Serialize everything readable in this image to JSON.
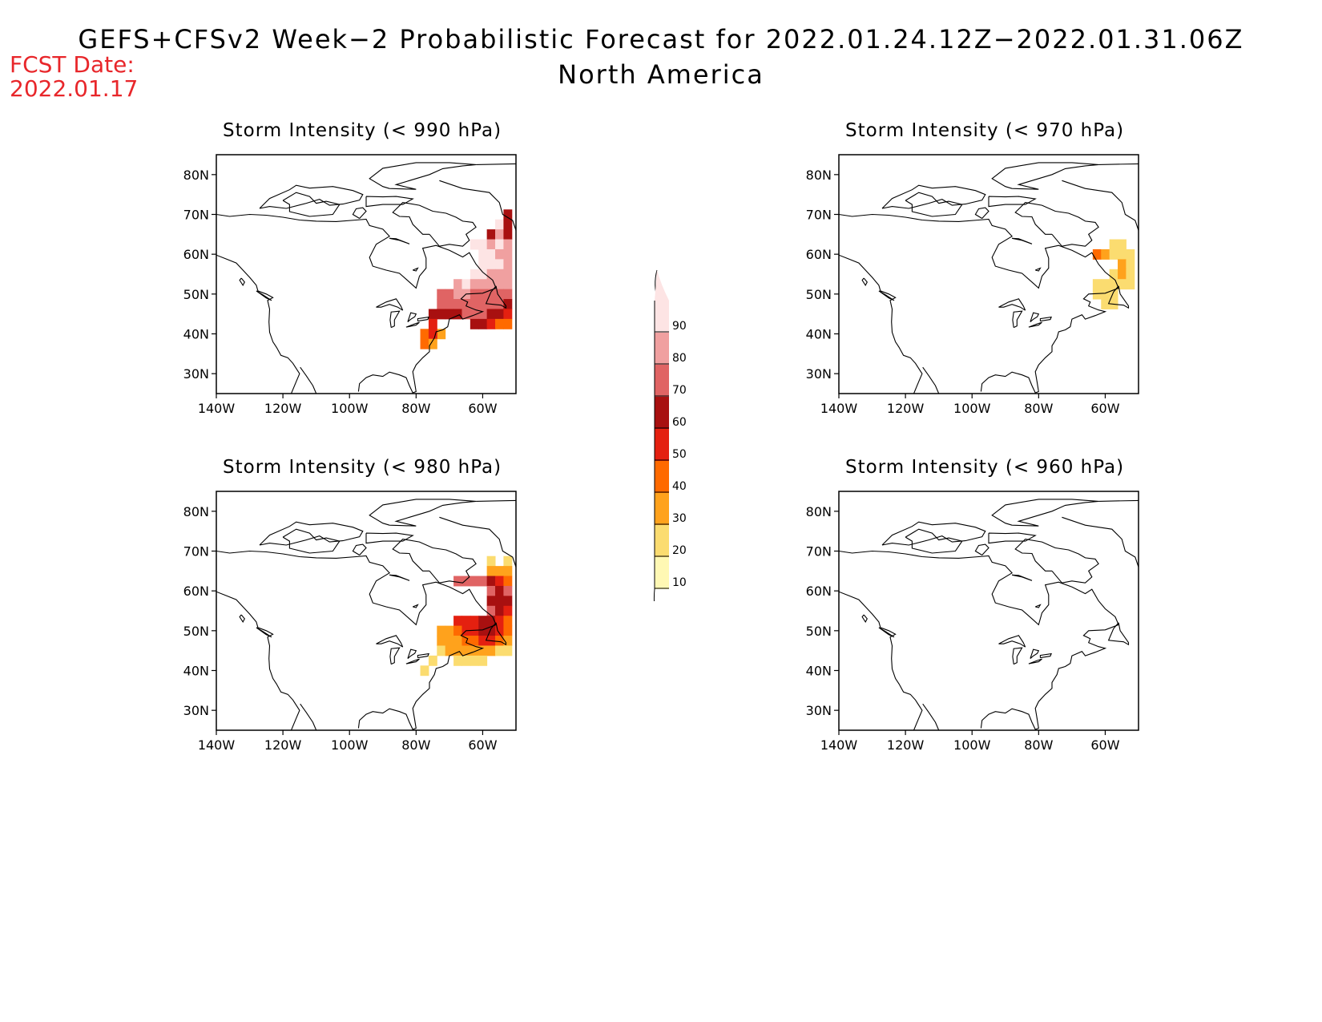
{
  "header": {
    "title": "GEFS+CFSv2 Week−2 Probabilistic Forecast for 2022.01.24.12Z−2022.01.31.06Z",
    "subtitle": "North America",
    "fcst_label": "FCST Date:",
    "fcst_date": "2022.01.17"
  },
  "axes": {
    "lat_labels": [
      "80N",
      "70N",
      "60N",
      "50N",
      "40N",
      "30N"
    ],
    "lon_labels": [
      "140W",
      "120W",
      "100W",
      "80W",
      "60W"
    ]
  },
  "panels": [
    {
      "id": "p990",
      "title": "Storm Intensity (< 990 hPa)"
    },
    {
      "id": "p970",
      "title": "Storm Intensity (< 970 hPa)"
    },
    {
      "id": "p980",
      "title": "Storm Intensity (< 980 hPa)"
    },
    {
      "id": "p960",
      "title": "Storm Intensity (< 960 hPa)"
    }
  ],
  "colorbar": {
    "labels": [
      "90",
      "80",
      "70",
      "60",
      "50",
      "40",
      "30",
      "20",
      "10"
    ],
    "colors": [
      "#fde4e4",
      "#f0a0a0",
      "#e06464",
      "#a81010",
      "#e42010",
      "#ff6a00",
      "#ffa21c",
      "#fbdc70",
      "#fff8b4"
    ]
  },
  "chart_data": {
    "type": "heatmap",
    "description_units": "probability percent",
    "lon_range": [
      -140,
      -50
    ],
    "lat_range": [
      25,
      85
    ],
    "maps": [
      {
        "title": "Storm Intensity (< 990 hPa)",
        "cells": [
          {
            "lon": -55,
            "lat": 67.5,
            "p": 90
          },
          {
            "lon": -52.5,
            "lat": 67.5,
            "p": 55
          },
          {
            "lon": -57.5,
            "lat": 65,
            "p": 55
          },
          {
            "lon": -55,
            "lat": 65,
            "p": 75
          },
          {
            "lon": -52.5,
            "lat": 65,
            "p": 60
          },
          {
            "lon": -52.5,
            "lat": 70,
            "p": 55
          },
          {
            "lon": -62.5,
            "lat": 62.5,
            "p": 92
          },
          {
            "lon": -60,
            "lat": 62.5,
            "p": 85
          },
          {
            "lon": -57.5,
            "lat": 62.5,
            "p": 80
          },
          {
            "lon": -55,
            "lat": 62.5,
            "p": 85
          },
          {
            "lon": -52.5,
            "lat": 62.5,
            "p": 80
          },
          {
            "lon": -60,
            "lat": 60,
            "p": 92
          },
          {
            "lon": -57.5,
            "lat": 60,
            "p": 85
          },
          {
            "lon": -55,
            "lat": 60,
            "p": 80
          },
          {
            "lon": -52.5,
            "lat": 60,
            "p": 80
          },
          {
            "lon": -60,
            "lat": 57.5,
            "p": 95
          },
          {
            "lon": -57.5,
            "lat": 57.5,
            "p": 95
          },
          {
            "lon": -55,
            "lat": 57.5,
            "p": 85
          },
          {
            "lon": -52.5,
            "lat": 57.5,
            "p": 80
          },
          {
            "lon": -62.5,
            "lat": 55,
            "p": 90
          },
          {
            "lon": -60,
            "lat": 55,
            "p": 85
          },
          {
            "lon": -57.5,
            "lat": 55,
            "p": 80
          },
          {
            "lon": -55,
            "lat": 55,
            "p": 75
          },
          {
            "lon": -52.5,
            "lat": 55,
            "p": 75
          },
          {
            "lon": -67.5,
            "lat": 52.5,
            "p": 75
          },
          {
            "lon": -65,
            "lat": 52.5,
            "p": 85
          },
          {
            "lon": -62.5,
            "lat": 52.5,
            "p": 75
          },
          {
            "lon": -60,
            "lat": 52.5,
            "p": 75
          },
          {
            "lon": -57.5,
            "lat": 52.5,
            "p": 75
          },
          {
            "lon": -55,
            "lat": 52.5,
            "p": 75
          },
          {
            "lon": -52.5,
            "lat": 52.5,
            "p": 75
          },
          {
            "lon": -72.5,
            "lat": 50,
            "p": 65
          },
          {
            "lon": -70,
            "lat": 50,
            "p": 65
          },
          {
            "lon": -67.5,
            "lat": 50,
            "p": 75
          },
          {
            "lon": -65,
            "lat": 50,
            "p": 75
          },
          {
            "lon": -62.5,
            "lat": 50,
            "p": 65
          },
          {
            "lon": -60,
            "lat": 50,
            "p": 65
          },
          {
            "lon": -57.5,
            "lat": 50,
            "p": 65
          },
          {
            "lon": -55,
            "lat": 50,
            "p": 65
          },
          {
            "lon": -52.5,
            "lat": 50,
            "p": 65
          },
          {
            "lon": -72.5,
            "lat": 47.5,
            "p": 65
          },
          {
            "lon": -70,
            "lat": 47.5,
            "p": 65
          },
          {
            "lon": -67.5,
            "lat": 47.5,
            "p": 65
          },
          {
            "lon": -65,
            "lat": 47.5,
            "p": 65
          },
          {
            "lon": -62.5,
            "lat": 47.5,
            "p": 65
          },
          {
            "lon": -60,
            "lat": 47.5,
            "p": 65
          },
          {
            "lon": -57.5,
            "lat": 47.5,
            "p": 65
          },
          {
            "lon": -55,
            "lat": 47.5,
            "p": 65
          },
          {
            "lon": -52.5,
            "lat": 47.5,
            "p": 55
          },
          {
            "lon": -75,
            "lat": 45,
            "p": 55
          },
          {
            "lon": -72.5,
            "lat": 45,
            "p": 55
          },
          {
            "lon": -70,
            "lat": 45,
            "p": 55
          },
          {
            "lon": -67.5,
            "lat": 45,
            "p": 55
          },
          {
            "lon": -65,
            "lat": 45,
            "p": 65
          },
          {
            "lon": -62.5,
            "lat": 45,
            "p": 65
          },
          {
            "lon": -60,
            "lat": 45,
            "p": 65
          },
          {
            "lon": -57.5,
            "lat": 45,
            "p": 55
          },
          {
            "lon": -55,
            "lat": 45,
            "p": 55
          },
          {
            "lon": -52.5,
            "lat": 45,
            "p": 45
          },
          {
            "lon": -75,
            "lat": 42.5,
            "p": 45
          },
          {
            "lon": -62.5,
            "lat": 42.5,
            "p": 55
          },
          {
            "lon": -60,
            "lat": 42.5,
            "p": 55
          },
          {
            "lon": -57.5,
            "lat": 42.5,
            "p": 45
          },
          {
            "lon": -55,
            "lat": 42.5,
            "p": 35
          },
          {
            "lon": -52.5,
            "lat": 42.5,
            "p": 35
          },
          {
            "lon": -77.5,
            "lat": 40,
            "p": 35
          },
          {
            "lon": -72.5,
            "lat": 40,
            "p": 25
          },
          {
            "lon": -75,
            "lat": 40,
            "p": 45
          },
          {
            "lon": -77.5,
            "lat": 37.5,
            "p": 35
          },
          {
            "lon": -75,
            "lat": 37.5,
            "p": 25
          }
        ]
      },
      {
        "title": "Storm Intensity (< 970 hPa)",
        "cells": [
          {
            "lon": -57.5,
            "lat": 62.5,
            "p": 20
          },
          {
            "lon": -55,
            "lat": 62.5,
            "p": 20
          },
          {
            "lon": -62.5,
            "lat": 60,
            "p": 35
          },
          {
            "lon": -60,
            "lat": 60,
            "p": 25
          },
          {
            "lon": -57.5,
            "lat": 60,
            "p": 15
          },
          {
            "lon": -55,
            "lat": 60,
            "p": 20
          },
          {
            "lon": -52.5,
            "lat": 60,
            "p": 20
          },
          {
            "lon": -55,
            "lat": 57.5,
            "p": 25
          },
          {
            "lon": -52.5,
            "lat": 57.5,
            "p": 20
          },
          {
            "lon": -57.5,
            "lat": 55,
            "p": 15
          },
          {
            "lon": -55,
            "lat": 55,
            "p": 25
          },
          {
            "lon": -52.5,
            "lat": 55,
            "p": 15
          },
          {
            "lon": -62.5,
            "lat": 52.5,
            "p": 15
          },
          {
            "lon": -60,
            "lat": 52.5,
            "p": 20
          },
          {
            "lon": -57.5,
            "lat": 52.5,
            "p": 20
          },
          {
            "lon": -55,
            "lat": 52.5,
            "p": 15
          },
          {
            "lon": -52.5,
            "lat": 52.5,
            "p": 15
          },
          {
            "lon": -62.5,
            "lat": 50,
            "p": 15
          },
          {
            "lon": -60,
            "lat": 50,
            "p": 15
          },
          {
            "lon": -57.5,
            "lat": 50,
            "p": 15
          },
          {
            "lon": -60,
            "lat": 47.5,
            "p": 15
          },
          {
            "lon": -57.5,
            "lat": 47.5,
            "p": 15
          }
        ]
      },
      {
        "title": "Storm Intensity (< 980 hPa)",
        "cells": [
          {
            "lon": -57.5,
            "lat": 67.5,
            "p": 15
          },
          {
            "lon": -52.5,
            "lat": 67.5,
            "p": 15
          },
          {
            "lon": -52.5,
            "lat": 65,
            "p": 25
          },
          {
            "lon": -57.5,
            "lat": 65,
            "p": 25
          },
          {
            "lon": -55,
            "lat": 65,
            "p": 25
          },
          {
            "lon": -67.5,
            "lat": 62.5,
            "p": 65
          },
          {
            "lon": -65,
            "lat": 62.5,
            "p": 65
          },
          {
            "lon": -62.5,
            "lat": 62.5,
            "p": 65
          },
          {
            "lon": -60,
            "lat": 62.5,
            "p": 65
          },
          {
            "lon": -57.5,
            "lat": 62.5,
            "p": 55
          },
          {
            "lon": -55,
            "lat": 62.5,
            "p": 45
          },
          {
            "lon": -52.5,
            "lat": 62.5,
            "p": 35
          },
          {
            "lon": -57.5,
            "lat": 60,
            "p": 65
          },
          {
            "lon": -55,
            "lat": 60,
            "p": 55
          },
          {
            "lon": -52.5,
            "lat": 60,
            "p": 65
          },
          {
            "lon": -57.5,
            "lat": 57.5,
            "p": 55
          },
          {
            "lon": -55,
            "lat": 57.5,
            "p": 55
          },
          {
            "lon": -52.5,
            "lat": 57.5,
            "p": 55
          },
          {
            "lon": -57.5,
            "lat": 55,
            "p": 65
          },
          {
            "lon": -55,
            "lat": 55,
            "p": 55
          },
          {
            "lon": -52.5,
            "lat": 55,
            "p": 45
          },
          {
            "lon": -67.5,
            "lat": 52.5,
            "p": 45
          },
          {
            "lon": -65,
            "lat": 52.5,
            "p": 45
          },
          {
            "lon": -62.5,
            "lat": 52.5,
            "p": 45
          },
          {
            "lon": -60,
            "lat": 52.5,
            "p": 55
          },
          {
            "lon": -57.5,
            "lat": 52.5,
            "p": 55
          },
          {
            "lon": -55,
            "lat": 52.5,
            "p": 45
          },
          {
            "lon": -52.5,
            "lat": 52.5,
            "p": 35
          },
          {
            "lon": -72.5,
            "lat": 50,
            "p": 25
          },
          {
            "lon": -70,
            "lat": 50,
            "p": 25
          },
          {
            "lon": -67.5,
            "lat": 50,
            "p": 35
          },
          {
            "lon": -65,
            "lat": 50,
            "p": 45
          },
          {
            "lon": -62.5,
            "lat": 50,
            "p": 45
          },
          {
            "lon": -60,
            "lat": 50,
            "p": 55
          },
          {
            "lon": -57.5,
            "lat": 50,
            "p": 55
          },
          {
            "lon": -55,
            "lat": 50,
            "p": 45
          },
          {
            "lon": -52.5,
            "lat": 50,
            "p": 35
          },
          {
            "lon": -72.5,
            "lat": 47.5,
            "p": 25
          },
          {
            "lon": -70,
            "lat": 47.5,
            "p": 25
          },
          {
            "lon": -67.5,
            "lat": 47.5,
            "p": 25
          },
          {
            "lon": -65,
            "lat": 47.5,
            "p": 35
          },
          {
            "lon": -62.5,
            "lat": 47.5,
            "p": 35
          },
          {
            "lon": -60,
            "lat": 47.5,
            "p": 45
          },
          {
            "lon": -57.5,
            "lat": 47.5,
            "p": 45
          },
          {
            "lon": -55,
            "lat": 47.5,
            "p": 35
          },
          {
            "lon": -52.5,
            "lat": 47.5,
            "p": 25
          },
          {
            "lon": -72.5,
            "lat": 45,
            "p": 15
          },
          {
            "lon": -70,
            "lat": 45,
            "p": 25
          },
          {
            "lon": -67.5,
            "lat": 45,
            "p": 25
          },
          {
            "lon": -65,
            "lat": 45,
            "p": 25
          },
          {
            "lon": -62.5,
            "lat": 45,
            "p": 25
          },
          {
            "lon": -60,
            "lat": 45,
            "p": 25
          },
          {
            "lon": -57.5,
            "lat": 45,
            "p": 25
          },
          {
            "lon": -55,
            "lat": 45,
            "p": 15
          },
          {
            "lon": -52.5,
            "lat": 45,
            "p": 15
          },
          {
            "lon": -75,
            "lat": 42.5,
            "p": 15
          },
          {
            "lon": -67.5,
            "lat": 42.5,
            "p": 15
          },
          {
            "lon": -65,
            "lat": 42.5,
            "p": 15
          },
          {
            "lon": -62.5,
            "lat": 42.5,
            "p": 15
          },
          {
            "lon": -60,
            "lat": 42.5,
            "p": 15
          },
          {
            "lon": -77.5,
            "lat": 40,
            "p": 15
          }
        ]
      },
      {
        "title": "Storm Intensity (< 960 hPa)",
        "cells": []
      }
    ]
  }
}
